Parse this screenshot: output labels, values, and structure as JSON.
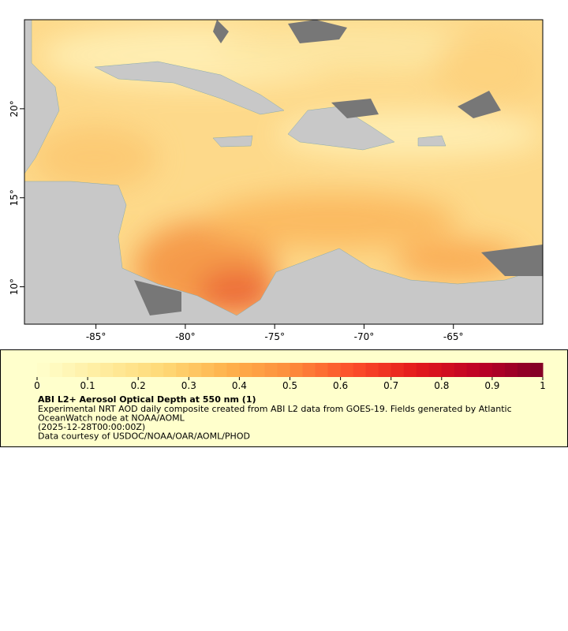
{
  "map": {
    "xlim": [
      -89,
      -60
    ],
    "ylim": [
      7.9,
      25
    ],
    "xticks": [
      {
        "value": -85,
        "label": "-85°"
      },
      {
        "value": -80,
        "label": "-80°"
      },
      {
        "value": -75,
        "label": "-75°"
      },
      {
        "value": -70,
        "label": "-70°"
      },
      {
        "value": -65,
        "label": "-65°"
      }
    ],
    "yticks": [
      {
        "value": 10,
        "label": "10°"
      },
      {
        "value": 15,
        "label": "15°"
      },
      {
        "value": 20,
        "label": "20°"
      }
    ]
  },
  "colorbar": {
    "lim": [
      0,
      1
    ],
    "ticks": [
      0,
      0.1,
      0.2,
      0.3,
      0.4,
      0.5,
      0.6,
      0.7,
      0.8,
      0.9,
      1
    ],
    "colors": [
      "#ffffcc",
      "#ffeda0",
      "#fed976",
      "#feb24c",
      "#fd8d3c",
      "#fc4e2a",
      "#e31a1c",
      "#bd0026",
      "#800026"
    ]
  },
  "legend": {
    "title": "ABI L2+ Aerosol Optical Depth at 550 nm (1)",
    "lines": [
      "Experimental NRT AOD daily composite created from ABI L2 data from GOES-19. Fields generated by Atlantic",
      "OceanWatch node at NOAA/AOML",
      "(2025-12-28T00:00:00Z)",
      "Data courtesy of USDOC/NOAA/OAR/AOML/PHOD"
    ]
  }
}
